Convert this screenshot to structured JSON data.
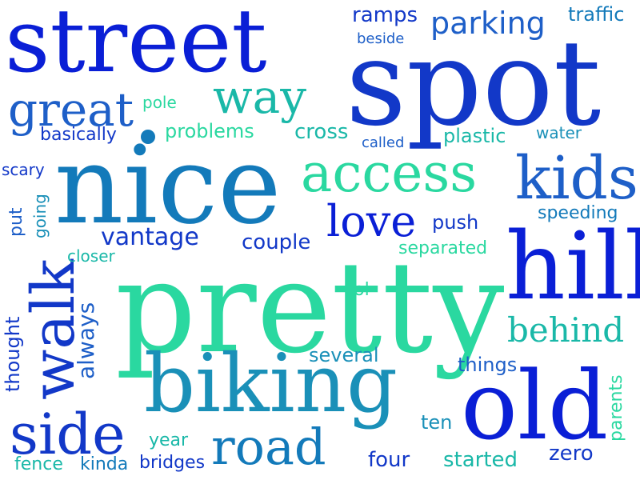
{
  "colors": {
    "royal": "#0a1fd6",
    "deep": "#1238c8",
    "blue": "#1e5fc8",
    "ocean": "#137aba",
    "steel": "#1a90b8",
    "teal": "#1ab8a8",
    "mint": "#2ad8a0"
  },
  "words": {
    "street": "street",
    "spot": "spot",
    "ramps": "ramps",
    "parking": "parking",
    "traffic": "traffic",
    "beside": "beside",
    "great": "great",
    "pole": "pole",
    "way": "way",
    "basically": "basically",
    "problems": "problems",
    "cross": "cross",
    "called": "called",
    "plastic": "plastic",
    "water": "water",
    "nice": "nice",
    "access": "access",
    "kids": "kids",
    "scary": "scary",
    "going": "going",
    "put": "put",
    "love": "love",
    "push": "push",
    "speeding": "speeding",
    "vantage": "vantage",
    "couple": "couple",
    "walk": "walk",
    "closer": "closer",
    "separated": "separated",
    "hill": "hill",
    "always": "always",
    "pretty": "pretty",
    "lol": "lol",
    "behind": "behind",
    "thought": "thought",
    "several": "several",
    "parents": "parents",
    "biking": "biking",
    "things": "things",
    "old": "old",
    "side": "side",
    "ten": "ten",
    "year": "year",
    "road": "road",
    "fence": "fence",
    "kinda": "kinda",
    "bridges": "bridges",
    "four": "four",
    "started": "started",
    "zero": "zero"
  }
}
